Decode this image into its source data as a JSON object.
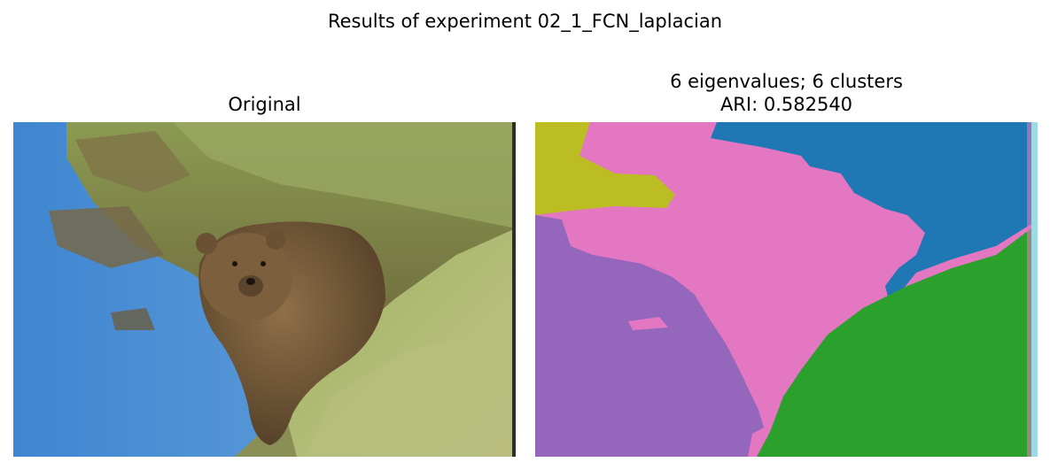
{
  "figure": {
    "suptitle": "Results of experiment 02_1_FCN_laplacian",
    "panels": [
      {
        "title": "Original",
        "image_name": "bear-photo"
      },
      {
        "title_line1": "6 eigenvalues; 6 clusters",
        "title_line2": "ARI: 0.582540",
        "image_name": "segmentation-map"
      }
    ]
  },
  "colors": {
    "background": "#ffffff",
    "cluster_olive": "#bcbd22",
    "cluster_pink": "#e377c2",
    "cluster_blue": "#1f77b4",
    "cluster_purple": "#9467bd",
    "cluster_green": "#2ca02c",
    "cluster_cyan": "#9edae5",
    "water": "#5b9ad8",
    "grass": "#9aa55a",
    "bear": "#7a5f3e"
  }
}
